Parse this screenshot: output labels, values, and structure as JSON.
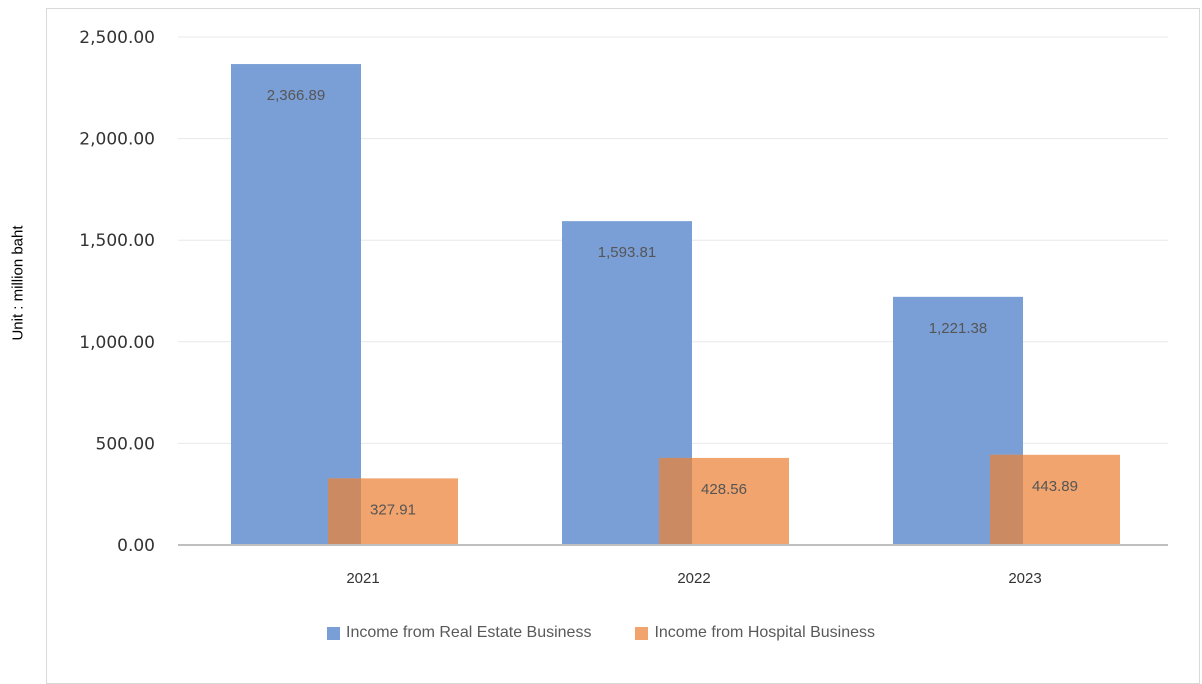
{
  "colors": {
    "real_estate": "#7a9fd6",
    "hospital": "#f1a46e",
    "overlap": "#cc8a63",
    "grid": "#e8e8e8",
    "axis": "#bfbfbf"
  },
  "chart_data": {
    "type": "bar",
    "categories": [
      "2021",
      "2022",
      "2023"
    ],
    "series": [
      {
        "name": "Income from Real Estate Business",
        "values": [
          2366.89,
          1593.81,
          1221.38
        ],
        "labels": [
          "2,366.89",
          "1,593.81",
          "1,221.38"
        ]
      },
      {
        "name": "Income from Hospital Business",
        "values": [
          327.91,
          428.56,
          443.89
        ],
        "labels": [
          "327.91",
          "428.56",
          "443.89"
        ]
      }
    ],
    "ylabel": "Unit : million baht",
    "ylim": [
      0,
      2500
    ],
    "yticks": [
      0,
      500,
      1000,
      1500,
      2000,
      2500
    ],
    "ytick_labels": [
      "0.00",
      "500.00",
      "1,000.00",
      "1,500.00",
      "2,000.00",
      "2,500.00"
    ],
    "grid": true,
    "legend_position": "bottom"
  }
}
